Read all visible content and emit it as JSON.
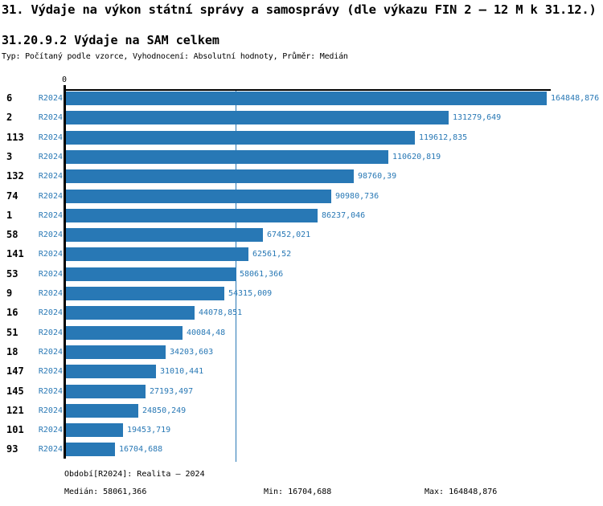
{
  "header": {
    "title": "31. Výdaje na výkon státní správy a samosprávy (dle výkazu FIN 2 – 12 M k 31.12.)",
    "subtitle": "31.20.9.2 Výdaje na SAM celkem",
    "meta": "Typ: Počítaný podle vzorce, Vyhodnocení: Absolutní hodnoty, Průměr: Medián"
  },
  "chart_data": {
    "type": "bar",
    "orientation": "horizontal",
    "title": "31.20.9.2 Výdaje na SAM celkem",
    "series_label": "R2024",
    "origin_tick_label": "0",
    "xlim": [
      0,
      164848.876
    ],
    "grid": false,
    "categories": [
      "6",
      "2",
      "113",
      "3",
      "132",
      "74",
      "1",
      "58",
      "141",
      "53",
      "9",
      "16",
      "51",
      "18",
      "147",
      "145",
      "121",
      "101",
      "93"
    ],
    "values": [
      164848.876,
      131279.649,
      119612.835,
      110620.819,
      98760.39,
      90980.736,
      86237.046,
      67452.021,
      62561.52,
      58061.366,
      54315.009,
      44078.851,
      40084.48,
      34203.603,
      31010.441,
      27193.497,
      24850.249,
      19453.719,
      16704.688
    ],
    "value_labels": [
      "164848,876",
      "131279,649",
      "119612,835",
      "110620,819",
      "98760,39",
      "90980,736",
      "86237,046",
      "67452,021",
      "62561,52",
      "58061,366",
      "54315,009",
      "44078,851",
      "40084,48",
      "34203,603",
      "31010,441",
      "27193,497",
      "24850,249",
      "19453,719",
      "16704,688"
    ],
    "median": 58061.366,
    "colors": {
      "bar": "#2878b5",
      "label_text": "#2878b5",
      "axis": "#000000",
      "median_line": "#2878b5"
    }
  },
  "footer": {
    "period_label": "Období[R2024]: Realita – 2024",
    "median_label": "Medián: 58061,366",
    "min_label": "Min: 16704,688",
    "max_label": "Max: 164848,876"
  }
}
